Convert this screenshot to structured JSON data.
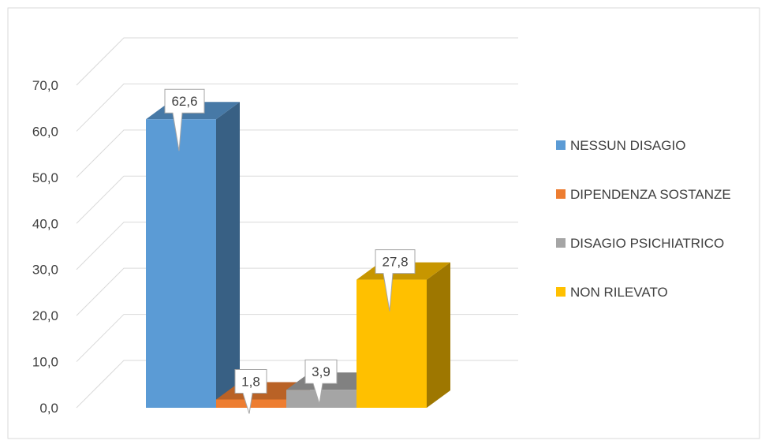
{
  "chart_data": {
    "type": "bar",
    "style": "3d-clustered",
    "categories": [
      "NESSUN DISAGIO",
      "DIPENDENZA SOSTANZE",
      "DISAGIO PSICHIATRICO",
      "NON RILEVATO"
    ],
    "series": [
      {
        "values": [
          62.6,
          1.8,
          3.9,
          27.8
        ],
        "value_labels": [
          "62,6",
          "1,8",
          "3,9",
          "27,8"
        ],
        "colors": [
          "#5b9bd5",
          "#ed7d31",
          "#a5a5a5",
          "#ffc000"
        ]
      }
    ],
    "ylim": [
      0,
      70
    ],
    "y_ticks": [
      0,
      10,
      20,
      30,
      40,
      50,
      60,
      70
    ],
    "y_tick_labels": [
      "0,0",
      "10,0",
      "20,0",
      "30,0",
      "40,0",
      "50,0",
      "60,0",
      "70,0"
    ],
    "grid": true,
    "legend_position": "right",
    "legend": [
      {
        "label": "NESSUN DISAGIO",
        "color": "#5b9bd5"
      },
      {
        "label": "DIPENDENZA SOSTANZE",
        "color": "#ed7d31"
      },
      {
        "label": "DISAGIO PSICHIATRICO",
        "color": "#a5a5a5"
      },
      {
        "label": "NON RILEVATO",
        "color": "#ffc000"
      }
    ],
    "title": "",
    "xlabel": "",
    "ylabel": ""
  }
}
